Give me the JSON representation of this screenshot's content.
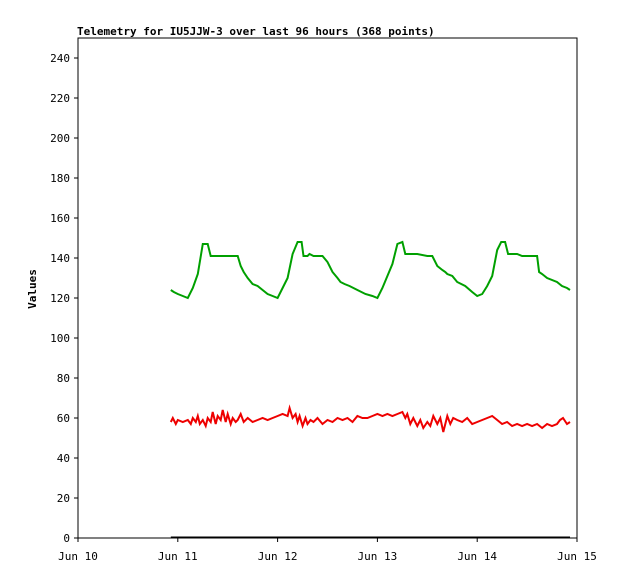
{
  "chart_data": {
    "type": "line",
    "title": "Telemetry for IU5JJW-3 over last 96 hours (368 points)",
    "xlabel": "",
    "ylabel": "Values",
    "ylim": [
      0,
      250
    ],
    "y_ticks": [
      0,
      20,
      40,
      60,
      80,
      100,
      120,
      140,
      160,
      180,
      200,
      220,
      240
    ],
    "x_ticks": [
      "Jun 10",
      "Jun 11",
      "Jun 12",
      "Jun 13",
      "Jun 14",
      "Jun 15"
    ],
    "xlim_days": [
      10,
      15
    ],
    "grid": false,
    "legend": "none",
    "series": [
      {
        "color": "#00a000",
        "x": [
          10.93,
          10.96,
          11.0,
          11.05,
          11.1,
          11.15,
          11.2,
          11.25,
          11.27,
          11.3,
          11.33,
          11.35,
          11.4,
          11.45,
          11.5,
          11.55,
          11.6,
          11.63,
          11.66,
          11.7,
          11.75,
          11.8,
          11.85,
          11.9,
          11.95,
          12.0,
          12.05,
          12.1,
          12.15,
          12.2,
          12.24,
          12.26,
          12.3,
          12.32,
          12.36,
          12.4,
          12.45,
          12.5,
          12.55,
          12.6,
          12.63,
          12.67,
          12.72,
          12.8,
          12.88,
          12.95,
          13.0,
          13.05,
          13.1,
          13.15,
          13.2,
          13.25,
          13.28,
          13.32,
          13.35,
          13.4,
          13.5,
          13.55,
          13.6,
          13.65,
          13.68,
          13.7,
          13.75,
          13.8,
          13.88,
          13.95,
          14.0,
          14.05,
          14.1,
          14.15,
          14.2,
          14.24,
          14.28,
          14.31,
          14.35,
          14.4,
          14.45,
          14.5,
          14.55,
          14.6,
          14.62,
          14.65,
          14.7,
          14.8,
          14.85,
          14.9,
          14.93
        ],
        "values": [
          124,
          123,
          122,
          121,
          120,
          125,
          132,
          147,
          147,
          147,
          141,
          141,
          141,
          141,
          141,
          141,
          141,
          136,
          133,
          130,
          127,
          126,
          124,
          122,
          121,
          120,
          125,
          130,
          142,
          148,
          148,
          141,
          141,
          142,
          141,
          141,
          141,
          138,
          133,
          130,
          128,
          127,
          126,
          124,
          122,
          121,
          120,
          125,
          131,
          137,
          147,
          148,
          142,
          142,
          142,
          142,
          141,
          141,
          136,
          134,
          133,
          132,
          131,
          128,
          126,
          123,
          121,
          122,
          126,
          131,
          144,
          148,
          148,
          142,
          142,
          142,
          141,
          141,
          141,
          141,
          133,
          132,
          130,
          128,
          126,
          125,
          124
        ]
      },
      {
        "color": "#ee0000",
        "x": [
          10.93,
          10.95,
          10.98,
          11.0,
          11.05,
          11.1,
          11.13,
          11.15,
          11.18,
          11.2,
          11.22,
          11.25,
          11.28,
          11.3,
          11.33,
          11.35,
          11.38,
          11.4,
          11.43,
          11.45,
          11.48,
          11.5,
          11.53,
          11.55,
          11.58,
          11.6,
          11.63,
          11.66,
          11.7,
          11.75,
          11.8,
          11.85,
          11.9,
          11.95,
          12.0,
          12.05,
          12.1,
          12.12,
          12.15,
          12.18,
          12.2,
          12.22,
          12.25,
          12.28,
          12.3,
          12.33,
          12.36,
          12.4,
          12.45,
          12.5,
          12.55,
          12.6,
          12.65,
          12.7,
          12.75,
          12.8,
          12.85,
          12.9,
          12.95,
          13.0,
          13.05,
          13.1,
          13.15,
          13.2,
          13.25,
          13.28,
          13.3,
          13.33,
          13.36,
          13.4,
          13.43,
          13.46,
          13.5,
          13.53,
          13.56,
          13.6,
          13.63,
          13.66,
          13.7,
          13.73,
          13.76,
          13.8,
          13.85,
          13.9,
          13.95,
          14.0,
          14.05,
          14.1,
          14.15,
          14.2,
          14.25,
          14.3,
          14.35,
          14.4,
          14.45,
          14.5,
          14.55,
          14.6,
          14.65,
          14.7,
          14.75,
          14.8,
          14.83,
          14.86,
          14.9,
          14.93
        ],
        "values": [
          58,
          60,
          57,
          59,
          58,
          59,
          57,
          60,
          58,
          61,
          57,
          59,
          56,
          60,
          58,
          63,
          57,
          61,
          59,
          64,
          58,
          62,
          57,
          60,
          58,
          59,
          62,
          58,
          60,
          58,
          59,
          60,
          59,
          60,
          61,
          62,
          61,
          65,
          60,
          62,
          58,
          61,
          56,
          60,
          57,
          59,
          58,
          60,
          57,
          59,
          58,
          60,
          59,
          60,
          58,
          61,
          60,
          60,
          61,
          62,
          61,
          62,
          61,
          62,
          63,
          60,
          62,
          57,
          60,
          56,
          59,
          55,
          58,
          56,
          61,
          57,
          60,
          53,
          61,
          57,
          60,
          59,
          58,
          60,
          57,
          58,
          59,
          60,
          61,
          59,
          57,
          58,
          56,
          57,
          56,
          57,
          56,
          57,
          55,
          57,
          56,
          57,
          59,
          60,
          57,
          58
        ]
      }
    ]
  }
}
